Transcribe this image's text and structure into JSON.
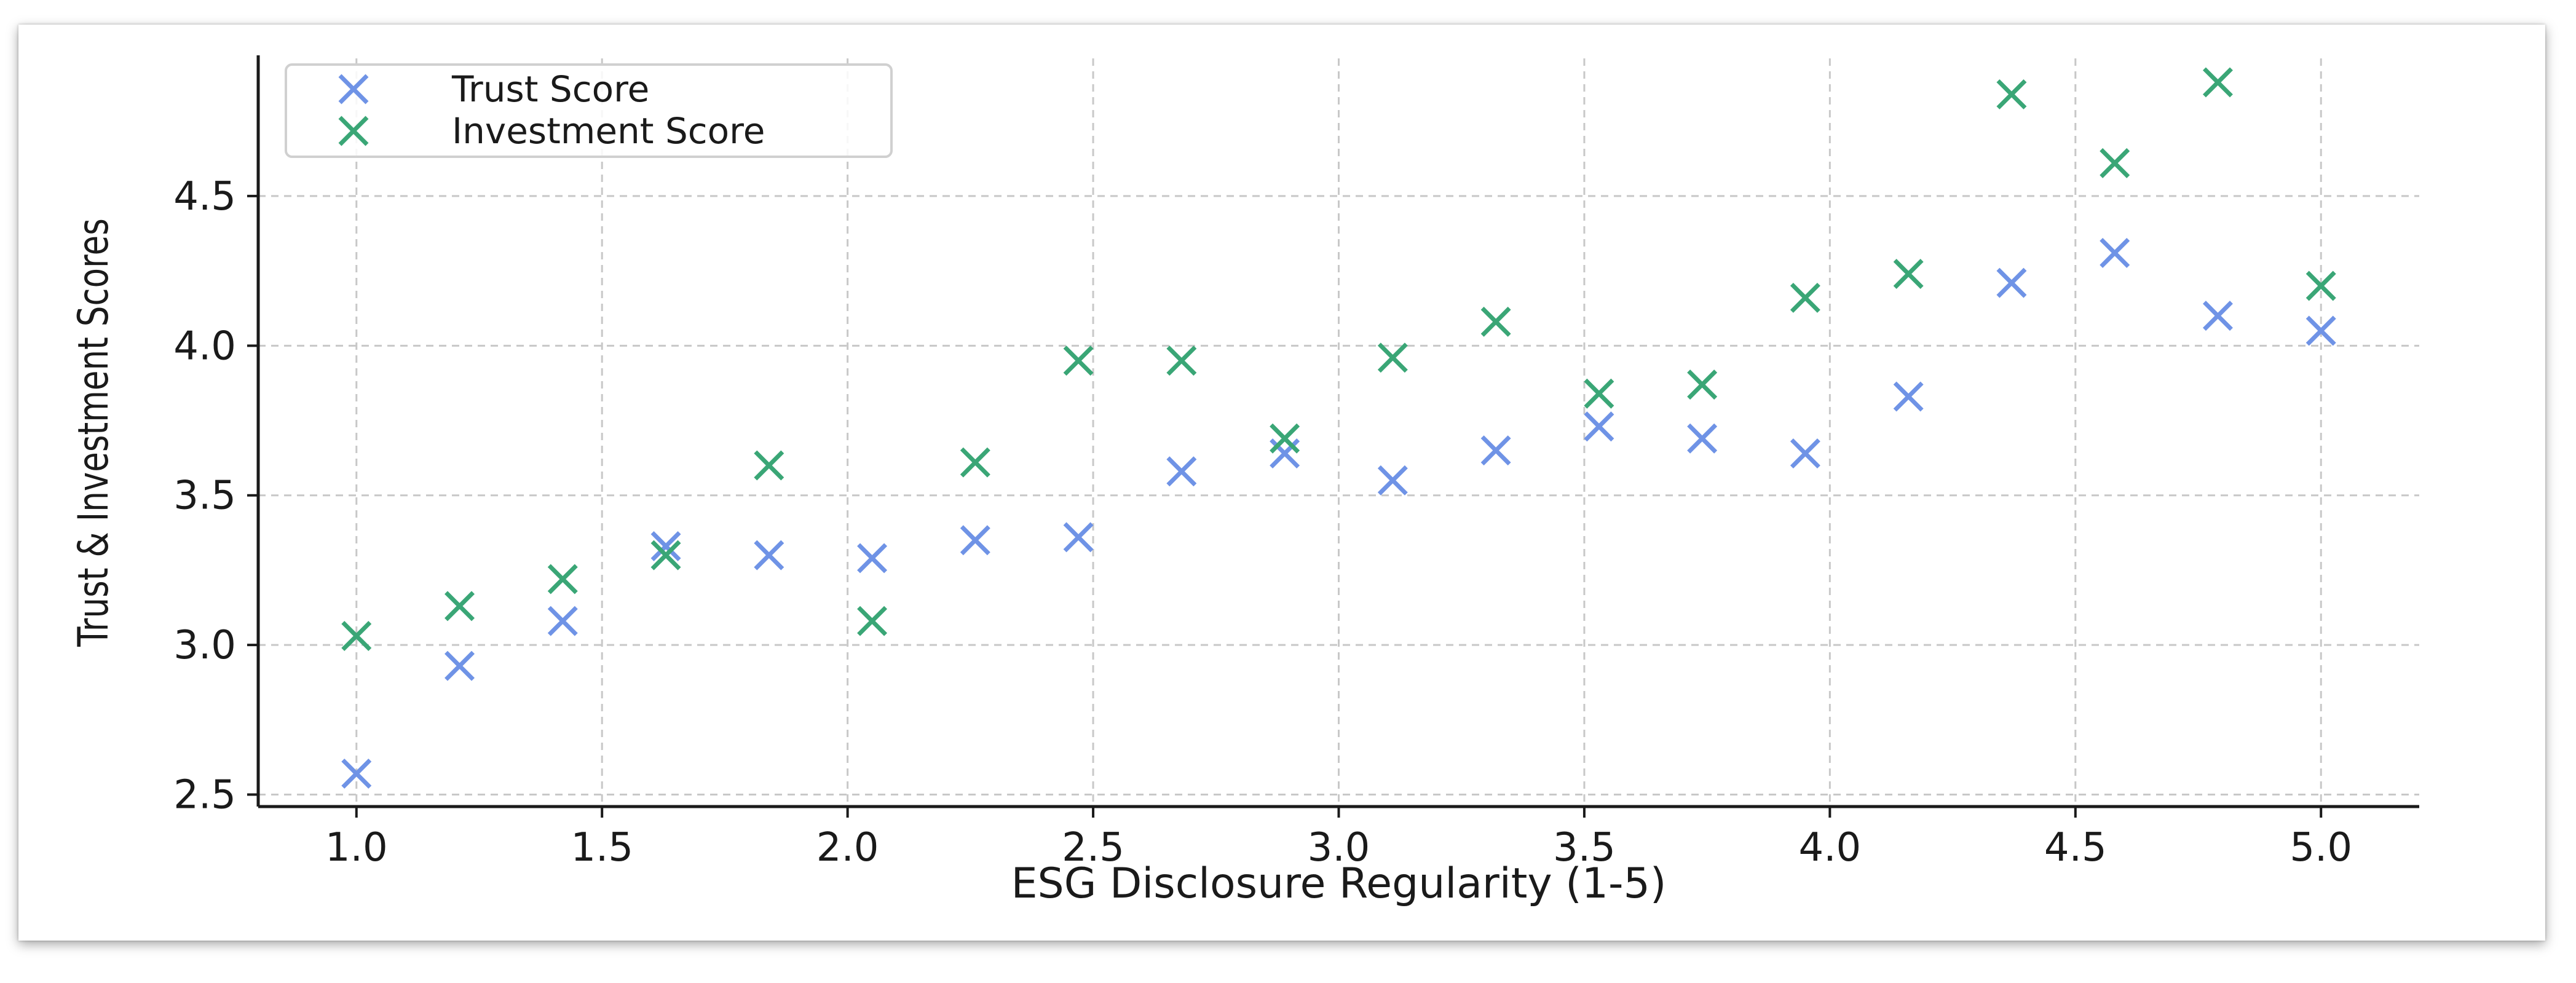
{
  "chart_data": {
    "type": "scatter",
    "title": "",
    "xlabel": "ESG Disclosure Regularity (1-5)",
    "ylabel": "Trust & Investment Scores",
    "xlim": [
      0.8,
      5.2
    ],
    "ylim": [
      2.46,
      4.96
    ],
    "xticks": [
      1.0,
      1.5,
      2.0,
      2.5,
      3.0,
      3.5,
      4.0,
      4.5,
      5.0
    ],
    "xtick_labels": [
      "1.0",
      "1.5",
      "2.0",
      "2.5",
      "3.0",
      "3.5",
      "4.0",
      "4.5",
      "5.0"
    ],
    "yticks": [
      2.5,
      3.0,
      3.5,
      4.0,
      4.5
    ],
    "ytick_labels": [
      "2.5",
      "3.0",
      "3.5",
      "4.0",
      "4.5"
    ],
    "grid": true,
    "legend_position": "top-left",
    "x": [
      1.0,
      1.21,
      1.42,
      1.63,
      1.84,
      2.05,
      2.26,
      2.47,
      2.68,
      2.89,
      3.11,
      3.32,
      3.53,
      3.74,
      3.95,
      4.16,
      4.37,
      4.58,
      4.79,
      5.0
    ],
    "series": [
      {
        "name": "Trust Score",
        "color": "#6f93e6",
        "marker": "x",
        "values": [
          2.57,
          2.93,
          3.08,
          3.33,
          3.3,
          3.29,
          3.35,
          3.36,
          3.58,
          3.64,
          3.55,
          3.65,
          3.73,
          3.69,
          3.64,
          3.83,
          4.21,
          4.31,
          4.1,
          4.05
        ]
      },
      {
        "name": "Investment Score",
        "color": "#3aa676",
        "marker": "x",
        "values": [
          3.03,
          3.13,
          3.22,
          3.3,
          3.6,
          3.08,
          3.61,
          3.95,
          3.95,
          3.69,
          3.96,
          4.08,
          3.84,
          3.87,
          4.16,
          4.24,
          4.84,
          4.61,
          4.88,
          4.2
        ]
      }
    ]
  }
}
